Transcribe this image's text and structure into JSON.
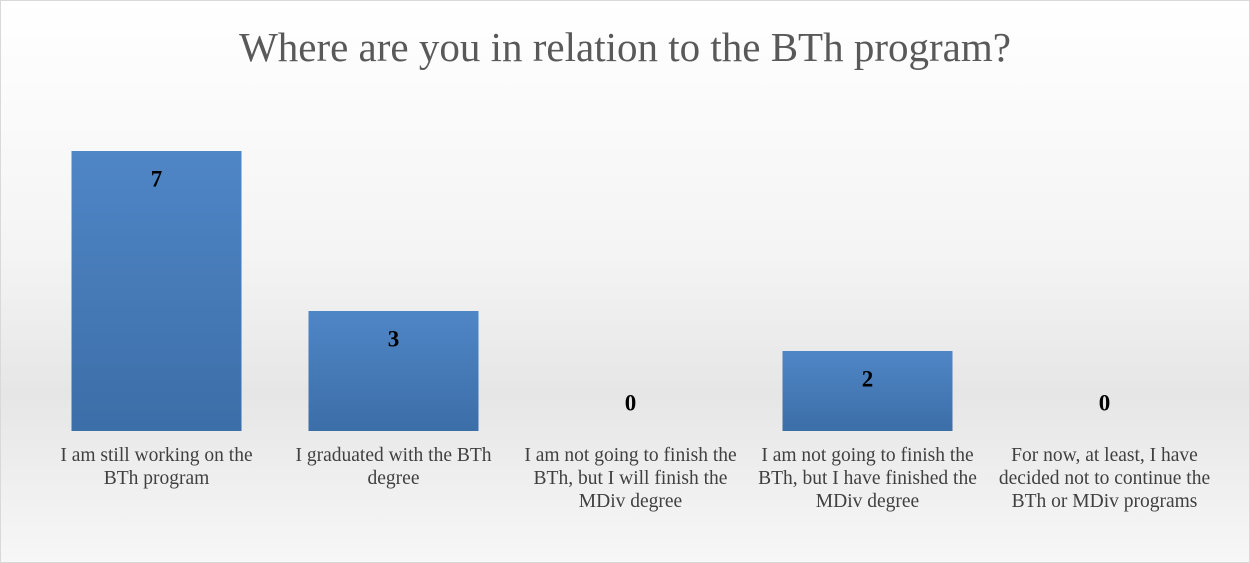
{
  "chart_data": {
    "type": "bar",
    "title": "Where are you in relation to the BTh program?",
    "categories": [
      "I am still working on the BTh program",
      "I graduated with the BTh degree",
      "I am not going to finish the BTh, but I will finish the MDiv degree",
      "I am not going to finish the BTh, but I have finished the MDiv degree",
      "For now, at least, I have decided not to continue the BTh or MDiv programs"
    ],
    "values": [
      7,
      3,
      0,
      2,
      0
    ],
    "color": "#4a7ebb"
  }
}
